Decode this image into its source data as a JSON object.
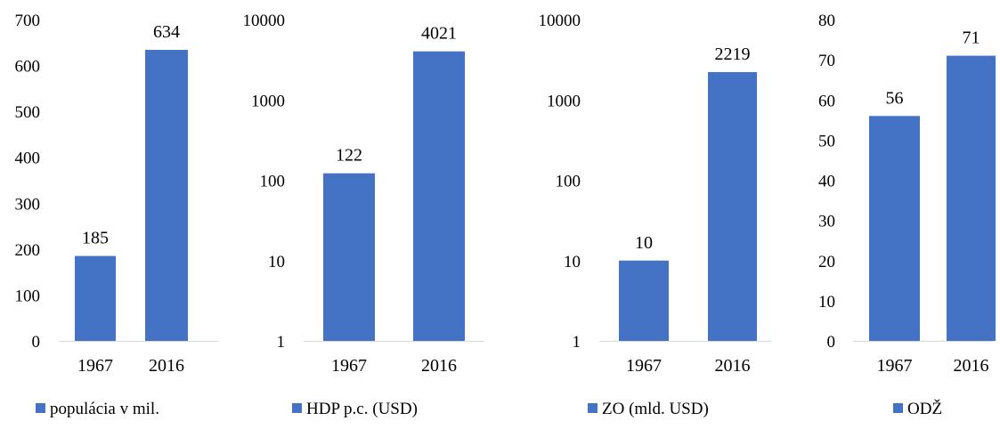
{
  "colors": {
    "bar": "#4472C4",
    "axis": "#D9D9D9",
    "text": "#000000"
  },
  "chart_data": [
    {
      "type": "bar",
      "scale": "linear",
      "categories": [
        "1967",
        "2016"
      ],
      "values": [
        185,
        634
      ],
      "data_labels": [
        "185",
        "634"
      ],
      "ylim": [
        0,
        700
      ],
      "yticks": [
        "0",
        "100",
        "200",
        "300",
        "400",
        "500",
        "600",
        "700"
      ],
      "grid": false,
      "legend": {
        "label": "populácia v mil.",
        "position": "bottom"
      }
    },
    {
      "type": "bar",
      "scale": "log",
      "categories": [
        "1967",
        "2016"
      ],
      "values": [
        122,
        4021
      ],
      "data_labels": [
        "122",
        "4021"
      ],
      "ylim": [
        1,
        10000
      ],
      "yticks": [
        "1",
        "10",
        "100",
        "1000",
        "10000"
      ],
      "grid": false,
      "legend": {
        "label": "HDP p.c. (USD)",
        "position": "bottom"
      }
    },
    {
      "type": "bar",
      "scale": "log",
      "categories": [
        "1967",
        "2016"
      ],
      "values": [
        10,
        2219
      ],
      "data_labels": [
        "10",
        "2219"
      ],
      "ylim": [
        1,
        10000
      ],
      "yticks": [
        "1",
        "10",
        "100",
        "1000",
        "10000"
      ],
      "grid": false,
      "legend": {
        "label": "ZO (mld. USD)",
        "position": "bottom"
      }
    },
    {
      "type": "bar",
      "scale": "linear",
      "categories": [
        "1967",
        "2016"
      ],
      "values": [
        56,
        71
      ],
      "data_labels": [
        "56",
        "71"
      ],
      "ylim": [
        0,
        80
      ],
      "yticks": [
        "0",
        "10",
        "20",
        "30",
        "40",
        "50",
        "60",
        "70",
        "80"
      ],
      "grid": false,
      "legend": {
        "label": "ODŽ",
        "position": "bottom"
      }
    }
  ]
}
